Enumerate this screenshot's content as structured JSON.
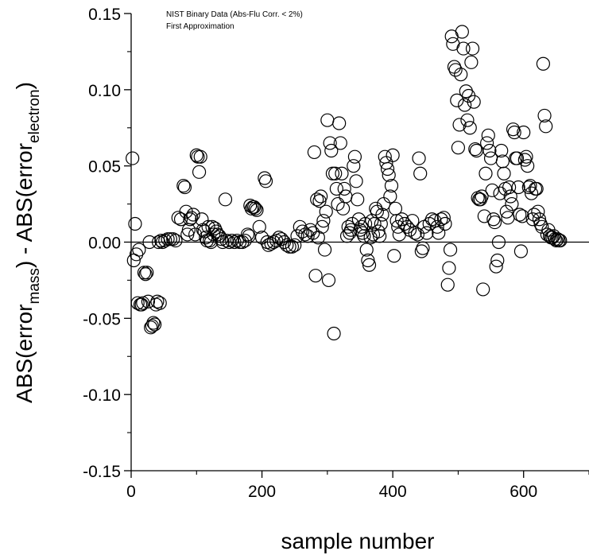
{
  "chart_data": {
    "type": "scatter",
    "annotations": [
      "NIST Binary Data (Abs-Flu Corr. < 2%)",
      "First Approximation"
    ],
    "xlabel": "sample number",
    "ylabel": {
      "prefix": "ABS(error",
      "sub1": "mass",
      "middle": ") - ABS(error",
      "sub2": "electron",
      "suffix": ")"
    },
    "xlim": [
      0,
      700
    ],
    "ylim": [
      -0.15,
      0.15
    ],
    "x_ticks": [
      {
        "value": 0,
        "label": "0"
      },
      {
        "value": 200,
        "label": "200"
      },
      {
        "value": 400,
        "label": "400"
      },
      {
        "value": 600,
        "label": "600"
      }
    ],
    "y_ticks": [
      {
        "value": 0.15,
        "label": "0.15"
      },
      {
        "value": 0.1,
        "label": "0.10"
      },
      {
        "value": 0.05,
        "label": "0.05"
      },
      {
        "value": 0.0,
        "label": "0.00"
      },
      {
        "value": -0.05,
        "label": "-0.05"
      },
      {
        "value": -0.1,
        "label": "-0.10"
      },
      {
        "value": -0.15,
        "label": "-0.15"
      }
    ],
    "marker": "open-circle",
    "marker_color": "#000000",
    "zero_line": true,
    "points": [
      [
        2,
        0.055
      ],
      [
        4,
        -0.012
      ],
      [
        6,
        0.012
      ],
      [
        8,
        -0.008
      ],
      [
        10,
        -0.04
      ],
      [
        12,
        -0.005
      ],
      [
        14,
        -0.041
      ],
      [
        16,
        -0.041
      ],
      [
        18,
        -0.04
      ],
      [
        20,
        -0.02
      ],
      [
        22,
        -0.021
      ],
      [
        24,
        -0.02
      ],
      [
        26,
        -0.039
      ],
      [
        28,
        0.0
      ],
      [
        30,
        -0.056
      ],
      [
        32,
        -0.055
      ],
      [
        34,
        -0.053
      ],
      [
        36,
        -0.054
      ],
      [
        38,
        -0.041
      ],
      [
        40,
        -0.039
      ],
      [
        42,
        0.0
      ],
      [
        44,
        -0.04
      ],
      [
        46,
        0.001
      ],
      [
        48,
        0.0
      ],
      [
        52,
        0.001
      ],
      [
        56,
        0.002
      ],
      [
        60,
        0.002
      ],
      [
        64,
        0.002
      ],
      [
        68,
        0.001
      ],
      [
        72,
        0.016
      ],
      [
        76,
        0.015
      ],
      [
        80,
        0.037
      ],
      [
        82,
        0.036
      ],
      [
        84,
        0.02
      ],
      [
        86,
        0.005
      ],
      [
        88,
        0.008
      ],
      [
        90,
        0.015
      ],
      [
        92,
        0.016
      ],
      [
        95,
        0.018
      ],
      [
        98,
        0.005
      ],
      [
        100,
        0.057
      ],
      [
        102,
        0.056
      ],
      [
        104,
        0.046
      ],
      [
        106,
        0.056
      ],
      [
        108,
        0.015
      ],
      [
        110,
        0.008
      ],
      [
        112,
        0.007
      ],
      [
        114,
        0.003
      ],
      [
        116,
        0.001
      ],
      [
        118,
        0.01
      ],
      [
        120,
        0.001
      ],
      [
        122,
        0.0
      ],
      [
        124,
        0.01
      ],
      [
        126,
        0.005
      ],
      [
        128,
        0.009
      ],
      [
        130,
        0.007
      ],
      [
        132,
        0.005
      ],
      [
        135,
        0.004
      ],
      [
        138,
        0.002
      ],
      [
        140,
        0.0
      ],
      [
        144,
        0.028
      ],
      [
        146,
        0.001
      ],
      [
        150,
        0.0
      ],
      [
        154,
        0.001
      ],
      [
        158,
        0.0
      ],
      [
        162,
        0.001
      ],
      [
        166,
        0.0
      ],
      [
        170,
        0.0
      ],
      [
        174,
        0.001
      ],
      [
        178,
        0.005
      ],
      [
        180,
        0.004
      ],
      [
        182,
        0.024
      ],
      [
        184,
        0.022
      ],
      [
        186,
        0.023
      ],
      [
        188,
        0.023
      ],
      [
        190,
        0.022
      ],
      [
        192,
        0.021
      ],
      [
        196,
        0.01
      ],
      [
        200,
        0.003
      ],
      [
        204,
        0.042
      ],
      [
        206,
        0.04
      ],
      [
        208,
        0.0
      ],
      [
        210,
        -0.002
      ],
      [
        214,
        -0.001
      ],
      [
        218,
        0.0
      ],
      [
        222,
        0.001
      ],
      [
        226,
        0.003
      ],
      [
        230,
        0.002
      ],
      [
        234,
        0.0
      ],
      [
        238,
        -0.002
      ],
      [
        242,
        -0.003
      ],
      [
        246,
        -0.003
      ],
      [
        250,
        -0.002
      ],
      [
        254,
        0.004
      ],
      [
        258,
        0.01
      ],
      [
        262,
        0.007
      ],
      [
        266,
        0.005
      ],
      [
        270,
        0.004
      ],
      [
        274,
        0.008
      ],
      [
        278,
        0.006
      ],
      [
        280,
        0.059
      ],
      [
        282,
        -0.022
      ],
      [
        284,
        0.028
      ],
      [
        286,
        0.003
      ],
      [
        288,
        0.027
      ],
      [
        290,
        0.03
      ],
      [
        292,
        0.01
      ],
      [
        294,
        0.014
      ],
      [
        296,
        -0.005
      ],
      [
        298,
        0.02
      ],
      [
        300,
        0.08
      ],
      [
        302,
        -0.025
      ],
      [
        304,
        0.065
      ],
      [
        306,
        0.06
      ],
      [
        308,
        0.045
      ],
      [
        310,
        -0.06
      ],
      [
        312,
        0.045
      ],
      [
        314,
        0.035
      ],
      [
        316,
        0.025
      ],
      [
        318,
        0.078
      ],
      [
        320,
        0.065
      ],
      [
        322,
        0.045
      ],
      [
        324,
        0.022
      ],
      [
        326,
        0.035
      ],
      [
        328,
        0.03
      ],
      [
        330,
        0.004
      ],
      [
        332,
        0.01
      ],
      [
        334,
        0.006
      ],
      [
        336,
        0.008
      ],
      [
        338,
        0.012
      ],
      [
        340,
        0.05
      ],
      [
        342,
        0.056
      ],
      [
        344,
        0.04
      ],
      [
        346,
        0.028
      ],
      [
        348,
        0.015
      ],
      [
        350,
        0.008
      ],
      [
        352,
        0.01
      ],
      [
        354,
        0.006
      ],
      [
        356,
        0.004
      ],
      [
        358,
        0.012
      ],
      [
        360,
        -0.005
      ],
      [
        362,
        -0.012
      ],
      [
        364,
        -0.015
      ],
      [
        366,
        0.003
      ],
      [
        368,
        0.014
      ],
      [
        370,
        0.005
      ],
      [
        372,
        0.012
      ],
      [
        374,
        0.022
      ],
      [
        376,
        0.02
      ],
      [
        378,
        0.007
      ],
      [
        380,
        0.004
      ],
      [
        382,
        0.012
      ],
      [
        384,
        0.018
      ],
      [
        386,
        0.025
      ],
      [
        388,
        0.056
      ],
      [
        390,
        0.052
      ],
      [
        392,
        0.048
      ],
      [
        394,
        0.044
      ],
      [
        396,
        0.03
      ],
      [
        398,
        0.037
      ],
      [
        400,
        0.057
      ],
      [
        402,
        -0.009
      ],
      [
        404,
        0.022
      ],
      [
        406,
        0.014
      ],
      [
        408,
        0.01
      ],
      [
        410,
        0.005
      ],
      [
        414,
        0.015
      ],
      [
        418,
        0.012
      ],
      [
        422,
        0.01
      ],
      [
        426,
        0.008
      ],
      [
        430,
        0.014
      ],
      [
        434,
        0.006
      ],
      [
        438,
        0.005
      ],
      [
        440,
        0.055
      ],
      [
        442,
        0.045
      ],
      [
        444,
        -0.006
      ],
      [
        446,
        -0.004
      ],
      [
        448,
        0.01
      ],
      [
        452,
        0.006
      ],
      [
        456,
        0.012
      ],
      [
        460,
        0.015
      ],
      [
        464,
        0.014
      ],
      [
        468,
        0.01
      ],
      [
        470,
        0.006
      ],
      [
        474,
        0.015
      ],
      [
        478,
        0.016
      ],
      [
        480,
        0.012
      ],
      [
        484,
        -0.028
      ],
      [
        486,
        -0.017
      ],
      [
        488,
        -0.005
      ],
      [
        490,
        0.135
      ],
      [
        492,
        0.13
      ],
      [
        494,
        0.115
      ],
      [
        496,
        0.113
      ],
      [
        498,
        0.093
      ],
      [
        500,
        0.062
      ],
      [
        502,
        0.077
      ],
      [
        504,
        0.11
      ],
      [
        506,
        0.138
      ],
      [
        508,
        0.127
      ],
      [
        510,
        0.09
      ],
      [
        512,
        0.099
      ],
      [
        514,
        0.08
      ],
      [
        516,
        0.096
      ],
      [
        518,
        0.075
      ],
      [
        520,
        0.118
      ],
      [
        522,
        0.127
      ],
      [
        524,
        0.092
      ],
      [
        526,
        0.061
      ],
      [
        528,
        0.06
      ],
      [
        530,
        0.029
      ],
      [
        532,
        0.028
      ],
      [
        534,
        0.028
      ],
      [
        536,
        0.03
      ],
      [
        538,
        -0.031
      ],
      [
        540,
        0.017
      ],
      [
        542,
        0.045
      ],
      [
        544,
        0.065
      ],
      [
        546,
        0.07
      ],
      [
        548,
        0.06
      ],
      [
        550,
        0.055
      ],
      [
        552,
        0.034
      ],
      [
        554,
        0.015
      ],
      [
        556,
        0.013
      ],
      [
        558,
        -0.016
      ],
      [
        560,
        -0.012
      ],
      [
        562,
        0.0
      ],
      [
        564,
        0.032
      ],
      [
        566,
        0.06
      ],
      [
        568,
        0.053
      ],
      [
        570,
        0.045
      ],
      [
        572,
        0.035
      ],
      [
        574,
        0.02
      ],
      [
        576,
        0.016
      ],
      [
        578,
        0.036
      ],
      [
        580,
        0.03
      ],
      [
        582,
        0.025
      ],
      [
        584,
        0.074
      ],
      [
        586,
        0.072
      ],
      [
        588,
        0.055
      ],
      [
        590,
        0.055
      ],
      [
        592,
        0.036
      ],
      [
        594,
        0.018
      ],
      [
        596,
        -0.006
      ],
      [
        598,
        0.017
      ],
      [
        600,
        0.072
      ],
      [
        602,
        0.054
      ],
      [
        604,
        0.056
      ],
      [
        606,
        0.05
      ],
      [
        608,
        0.036
      ],
      [
        610,
        0.037
      ],
      [
        612,
        0.032
      ],
      [
        614,
        0.015
      ],
      [
        616,
        0.018
      ],
      [
        618,
        0.035
      ],
      [
        620,
        0.035
      ],
      [
        622,
        0.02
      ],
      [
        624,
        0.015
      ],
      [
        626,
        0.012
      ],
      [
        628,
        0.01
      ],
      [
        630,
        0.117
      ],
      [
        632,
        0.083
      ],
      [
        634,
        0.076
      ],
      [
        636,
        0.005
      ],
      [
        638,
        0.008
      ],
      [
        640,
        0.004
      ],
      [
        642,
        0.003
      ],
      [
        644,
        0.003
      ],
      [
        646,
        0.004
      ],
      [
        648,
        0.002
      ],
      [
        650,
        0.001
      ],
      [
        652,
        0.002
      ],
      [
        654,
        0.001
      ],
      [
        656,
        0.001
      ]
    ]
  }
}
